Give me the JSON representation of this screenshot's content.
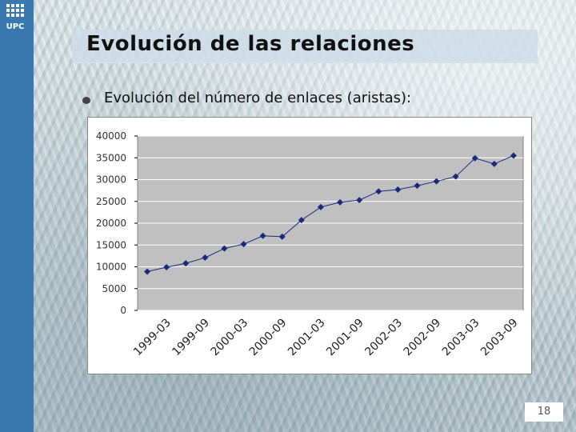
{
  "slide": {
    "title": "Evolución de las relaciones",
    "bullet": "Evolución del número de enlaces (aristas):",
    "page_number": "18",
    "logo_text": "UPC"
  },
  "colors": {
    "sidebar": "#3a78b0",
    "plot_bg": "#c0c0c0",
    "series": "#1a2a7a"
  },
  "chart_data": {
    "type": "line",
    "title": "",
    "xlabel": "",
    "ylabel": "",
    "ylim": [
      0,
      40000
    ],
    "y_ticks": [
      "0",
      "5000",
      "10000",
      "15000",
      "20000",
      "25000",
      "30000",
      "35000",
      "40000"
    ],
    "x_tick_labels": [
      "1999-03",
      "1999-09",
      "2000-03",
      "2000-09",
      "2001-03",
      "2001-09",
      "2002-03",
      "2002-09",
      "2003-03",
      "2003-09"
    ],
    "grid": true,
    "legend": "none",
    "series": [
      {
        "name": "Enlaces",
        "values": [
          8900,
          9900,
          10800,
          12100,
          14200,
          15200,
          17100,
          16900,
          20700,
          23700,
          24800,
          25300,
          27300,
          27700,
          28600,
          29600,
          30700,
          34900,
          33600,
          35500
        ]
      }
    ]
  }
}
